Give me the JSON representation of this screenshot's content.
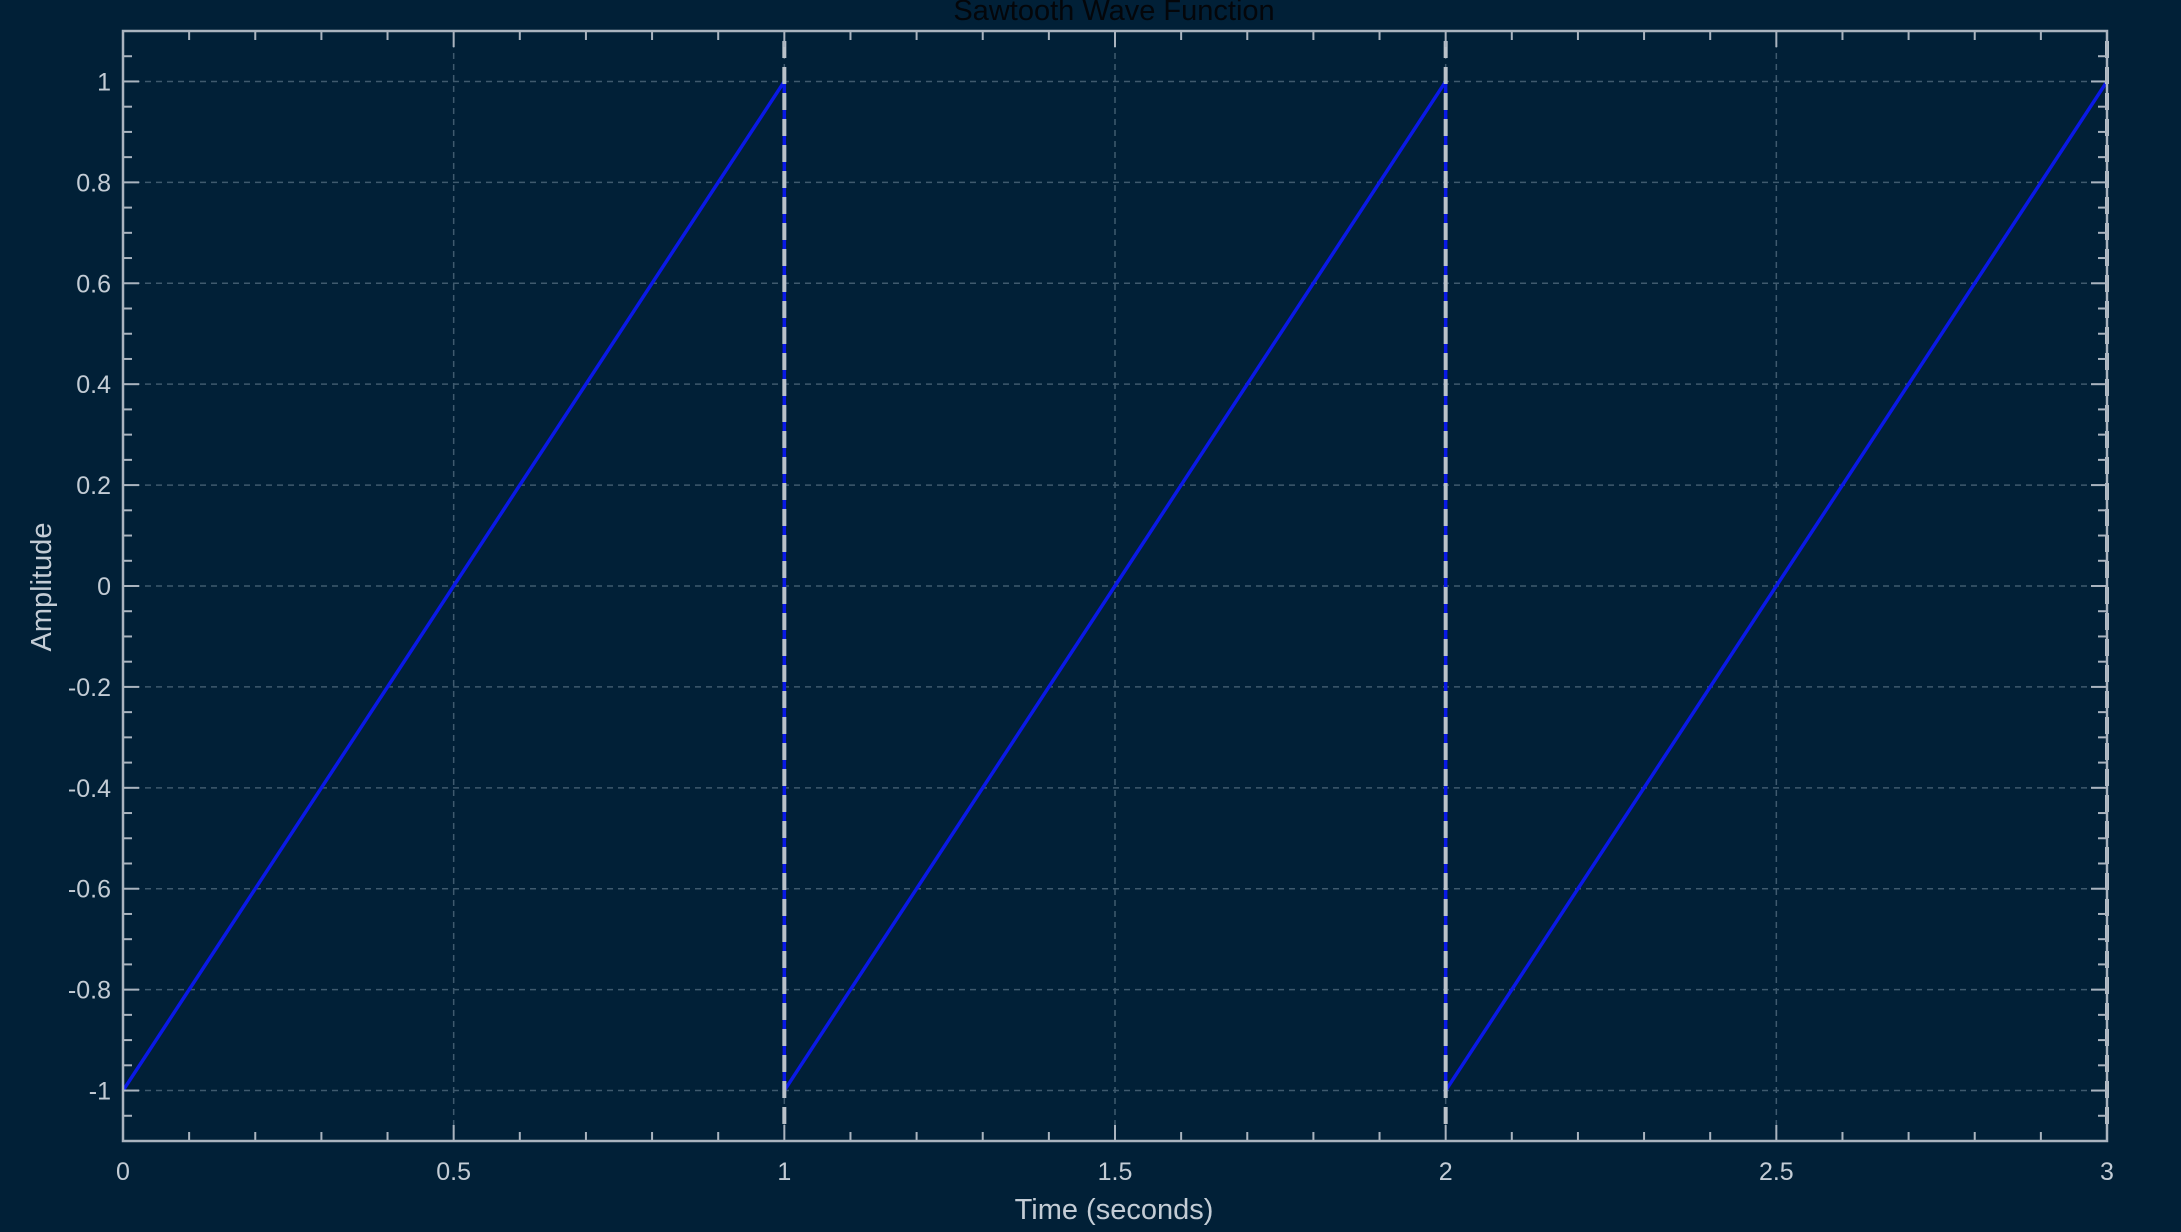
{
  "chart_data": {
    "type": "line",
    "title": "Sawtooth Wave Function",
    "xlabel": "Time (seconds)",
    "ylabel": "Amplitude",
    "xlim": [
      0,
      3
    ],
    "ylim": [
      -1.1,
      1.1
    ],
    "xticks": [
      0,
      0.5,
      1,
      1.5,
      2,
      2.5,
      3
    ],
    "xtick_labels": [
      "0",
      "0.5",
      "1",
      "1.5",
      "2",
      "2.5",
      "3"
    ],
    "yticks": [
      -1,
      -0.8,
      -0.6,
      -0.4,
      -0.2,
      0,
      0.2,
      0.4,
      0.6,
      0.8,
      1
    ],
    "ytick_labels": [
      "-1",
      "-0.8",
      "-0.6",
      "-0.4",
      "-0.2",
      "0",
      "0.2",
      "0.4",
      "0.6",
      "0.8",
      "1"
    ],
    "x_minor_step": 0.1,
    "y_minor_step": 0.05,
    "grid": true,
    "series": [
      {
        "x": [
          0,
          1,
          1,
          2,
          2,
          3
        ],
        "y": [
          -1,
          1,
          -1,
          1,
          -1,
          1
        ]
      }
    ],
    "discontinuity_markers": [
      1,
      2,
      3
    ],
    "colors": {
      "background": "#012037",
      "line": "#0a19e6",
      "axis": "#aab4bf",
      "grid": "#3f5a6e",
      "marker": "#b9c1c9"
    }
  }
}
